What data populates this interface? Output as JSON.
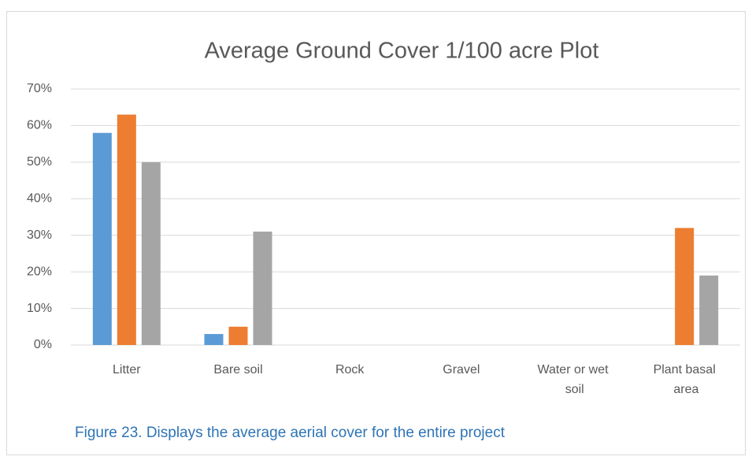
{
  "chart_data": {
    "type": "bar",
    "title": "Average Ground Cover 1/100 acre Plot",
    "caption": "Figure 23. Displays the average aerial cover for the entire project",
    "categories": [
      "Litter",
      "Bare soil",
      "Rock",
      "Gravel",
      "Water or wet soil",
      "Plant basal area"
    ],
    "series": [
      {
        "color": "#5b9bd5",
        "values": [
          58,
          3,
          0,
          0,
          0,
          0
        ]
      },
      {
        "color": "#ed7d31",
        "values": [
          63,
          5,
          0,
          0,
          0,
          32
        ]
      },
      {
        "color": "#a5a5a5",
        "values": [
          50,
          31,
          0,
          0,
          0,
          19
        ]
      }
    ],
    "ylim": [
      0,
      70
    ],
    "yticks": [
      {
        "value": 0,
        "label": "0%"
      },
      {
        "value": 10,
        "label": "10%"
      },
      {
        "value": 20,
        "label": "20%"
      },
      {
        "value": 30,
        "label": "30%"
      },
      {
        "value": 40,
        "label": "40%"
      },
      {
        "value": 50,
        "label": "50%"
      },
      {
        "value": 60,
        "label": "60%"
      },
      {
        "value": 70,
        "label": "70%"
      }
    ],
    "grid": true
  }
}
